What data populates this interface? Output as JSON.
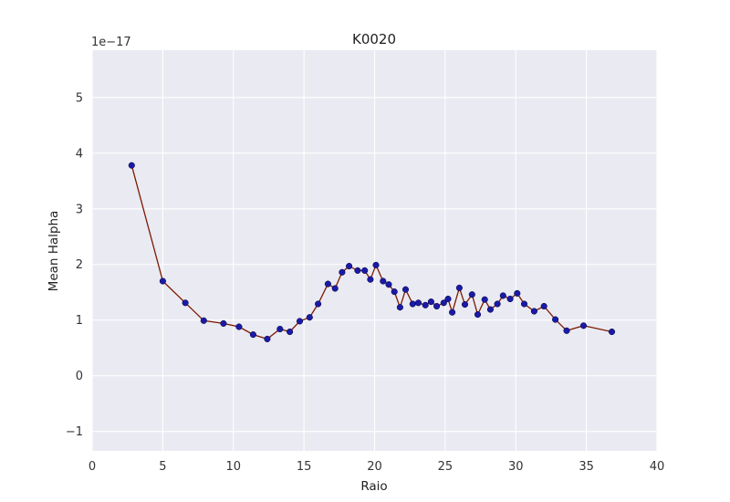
{
  "chart_data": {
    "type": "line",
    "title": "K0020",
    "xlabel": "Raio",
    "ylabel": "Mean Halpha",
    "y_offset_label": "1e−17",
    "xlim": [
      0,
      40
    ],
    "ylim": [
      -1.35,
      5.85
    ],
    "x_ticks": [
      0,
      5,
      10,
      15,
      20,
      25,
      30,
      35,
      40
    ],
    "y_ticks": [
      -1,
      0,
      1,
      2,
      3,
      4,
      5
    ],
    "x_tick_labels": [
      "0",
      "5",
      "10",
      "15",
      "20",
      "25",
      "30",
      "35",
      "40"
    ],
    "y_tick_labels": [
      "−1",
      "0",
      "1",
      "2",
      "3",
      "4",
      "5"
    ],
    "grid": true,
    "style": {
      "background": "#EAEAF2",
      "line_color": "#7B1A00",
      "marker_color": "#1A1AA8",
      "grid_color": "#FFFFFF"
    },
    "series": [
      {
        "x": [
          2.8,
          5.0,
          6.6,
          7.9,
          9.3,
          10.4,
          11.4,
          12.4,
          13.3,
          14.0,
          14.7,
          15.4,
          16.0,
          16.7,
          17.2,
          17.7,
          18.2,
          18.8,
          19.3,
          19.7,
          20.1,
          20.6,
          21.0,
          21.4,
          21.8,
          22.2,
          22.7,
          23.1,
          23.6,
          24.0,
          24.4,
          24.9,
          25.2,
          25.5,
          26.0,
          26.4,
          26.9,
          27.3,
          27.8,
          28.2,
          28.7,
          29.1,
          29.6,
          30.1,
          30.6,
          31.3,
          32.0,
          32.8,
          33.6,
          34.8,
          36.8
        ],
        "y": [
          3.78,
          1.7,
          1.31,
          0.99,
          0.94,
          0.88,
          0.74,
          0.66,
          0.84,
          0.79,
          0.98,
          1.05,
          1.29,
          1.65,
          1.57,
          1.86,
          1.97,
          1.89,
          1.89,
          1.73,
          1.99,
          1.7,
          1.64,
          1.51,
          1.23,
          1.55,
          1.29,
          1.31,
          1.27,
          1.33,
          1.25,
          1.31,
          1.38,
          1.14,
          1.58,
          1.28,
          1.46,
          1.1,
          1.37,
          1.19,
          1.29,
          1.44,
          1.38,
          1.48,
          1.29,
          1.16,
          1.25,
          1.01,
          0.81,
          0.9,
          0.79
        ]
      }
    ]
  }
}
